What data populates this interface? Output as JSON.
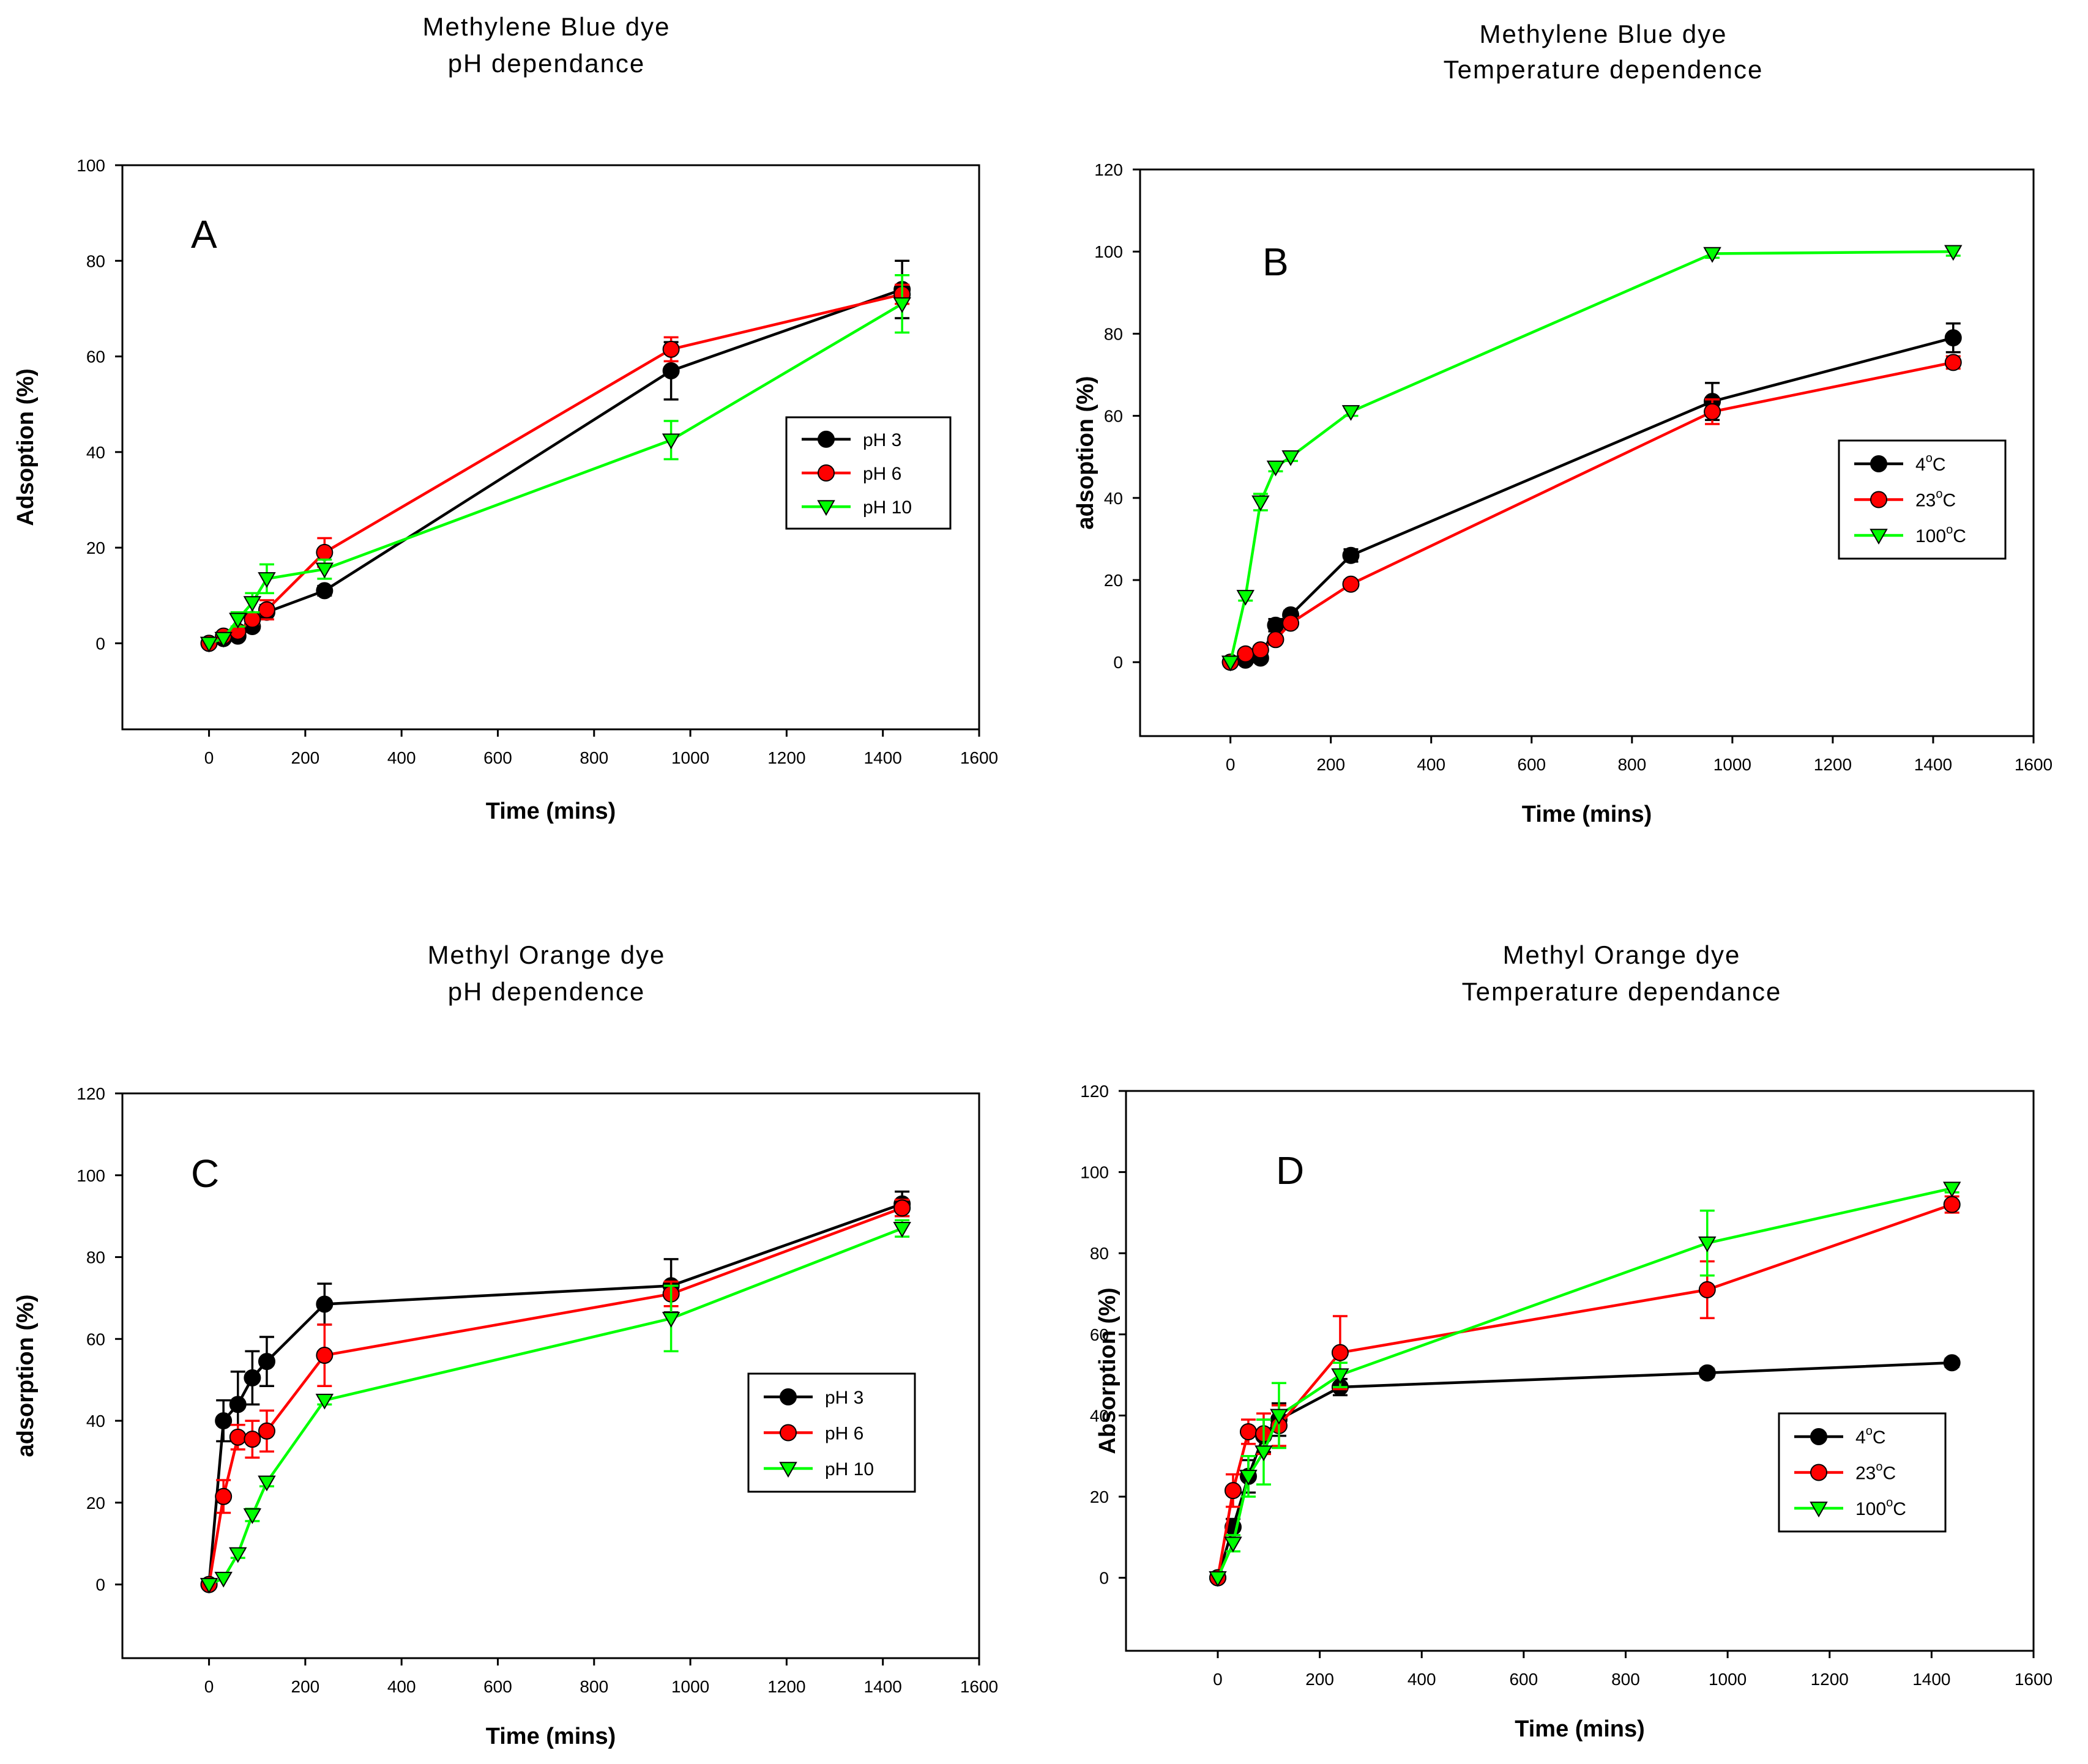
{
  "chart_data": [
    {
      "type": "line",
      "panel": "A",
      "title": [
        "Methylene Blue dye",
        "pH dependance"
      ],
      "xlabel": "Time (mins)",
      "ylabel": "Adsoption (%)",
      "xlim": [
        -180,
        1600
      ],
      "ylim": [
        -18,
        100
      ],
      "xticks": [
        0,
        200,
        400,
        600,
        800,
        1000,
        1200,
        1400,
        1600
      ],
      "yticks": [
        0,
        20,
        40,
        60,
        80,
        100
      ],
      "legend_position": "center-right",
      "series": [
        {
          "name": "pH 3",
          "color": "#000000",
          "marker": "circle",
          "x": [
            0,
            30,
            60,
            90,
            120,
            240,
            960,
            1440
          ],
          "y": [
            0,
            1,
            1.5,
            3.5,
            6.5,
            11,
            57,
            74
          ],
          "err": [
            0.5,
            0.5,
            0.5,
            0.8,
            1.5,
            1,
            6,
            6
          ]
        },
        {
          "name": "pH 6",
          "color": "#ff0000",
          "marker": "circle",
          "x": [
            0,
            30,
            60,
            90,
            120,
            240,
            960,
            1440
          ],
          "y": [
            0,
            1.5,
            2.5,
            5,
            7,
            19,
            61.5,
            73
          ],
          "err": [
            0.5,
            0.5,
            0.8,
            1,
            2,
            3,
            2.5,
            2
          ]
        },
        {
          "name": "pH 10",
          "color": "#00ff00",
          "marker": "triangle-down",
          "x": [
            0,
            30,
            60,
            90,
            120,
            240,
            960,
            1440
          ],
          "y": [
            0,
            1,
            5,
            8.5,
            13.5,
            15.5,
            42.5,
            71
          ],
          "err": [
            0.5,
            0.5,
            1.5,
            2,
            3,
            2,
            4,
            6
          ]
        }
      ]
    },
    {
      "type": "line",
      "panel": "B",
      "title": [
        "Methylene Blue dye",
        "Temperature dependence"
      ],
      "xlabel": "Time (mins)",
      "ylabel": "adsoption (%)",
      "xlim": [
        -180,
        1600
      ],
      "ylim": [
        -18,
        120
      ],
      "xticks": [
        0,
        200,
        400,
        600,
        800,
        1000,
        1200,
        1400,
        1600
      ],
      "yticks": [
        0,
        20,
        40,
        60,
        80,
        100,
        120
      ],
      "legend_position": "center-right",
      "series": [
        {
          "name": "4",
          "name_sup": "o",
          "name_suffix": "C",
          "color": "#000000",
          "marker": "circle",
          "x": [
            0,
            30,
            60,
            90,
            120,
            240,
            960,
            1440
          ],
          "y": [
            0,
            0.5,
            1,
            9,
            11.5,
            26,
            63.5,
            79
          ],
          "err": [
            0.5,
            0.5,
            0.5,
            1.5,
            1,
            1.5,
            4.5,
            3.5
          ]
        },
        {
          "name": "23",
          "name_sup": "o",
          "name_suffix": "C",
          "color": "#ff0000",
          "marker": "circle",
          "x": [
            0,
            30,
            60,
            90,
            120,
            240,
            960,
            1440
          ],
          "y": [
            0,
            2,
            3,
            5.5,
            9.5,
            19,
            61,
            73
          ],
          "err": [
            0.5,
            0.5,
            0.5,
            0.8,
            1,
            1,
            3,
            1.5
          ]
        },
        {
          "name": "100",
          "name_sup": "o",
          "name_suffix": "C",
          "color": "#00ff00",
          "marker": "triangle-down",
          "x": [
            0,
            30,
            60,
            90,
            120,
            240,
            960,
            1440
          ],
          "y": [
            0,
            16,
            39,
            47.5,
            50,
            61,
            99.5,
            100
          ],
          "err": [
            0.5,
            1,
            2,
            1,
            1,
            1,
            1,
            1
          ]
        }
      ]
    },
    {
      "type": "line",
      "panel": "C",
      "title": [
        "Methyl Orange dye",
        "pH dependence"
      ],
      "xlabel": "Time (mins)",
      "ylabel": "adsorption (%)",
      "xlim": [
        -180,
        1600
      ],
      "ylim": [
        -18,
        120
      ],
      "xticks": [
        0,
        200,
        400,
        600,
        800,
        1000,
        1200,
        1400,
        1600
      ],
      "yticks": [
        0,
        20,
        40,
        60,
        80,
        100,
        120
      ],
      "legend_position": "center-right",
      "series": [
        {
          "name": "pH 3",
          "color": "#000000",
          "marker": "circle",
          "x": [
            0,
            30,
            60,
            90,
            120,
            240,
            960,
            1440
          ],
          "y": [
            0,
            40,
            44,
            50.5,
            54.5,
            68.5,
            73,
            93
          ],
          "err": [
            0.5,
            5,
            8,
            6.5,
            6,
            5,
            6.5,
            3
          ]
        },
        {
          "name": "pH 6",
          "color": "#ff0000",
          "marker": "circle",
          "x": [
            0,
            30,
            60,
            90,
            120,
            240,
            960,
            1440
          ],
          "y": [
            0,
            21.5,
            36,
            35.5,
            37.5,
            56,
            71,
            92
          ],
          "err": [
            0.5,
            4,
            3,
            4.5,
            5,
            7.5,
            3,
            2
          ]
        },
        {
          "name": "pH 10",
          "color": "#00ff00",
          "marker": "triangle-down",
          "x": [
            0,
            30,
            60,
            90,
            120,
            240,
            960,
            1440
          ],
          "y": [
            0,
            1.5,
            7.5,
            17,
            25,
            45,
            65,
            87
          ],
          "err": [
            0.5,
            0.5,
            1,
            1.5,
            1,
            1,
            8,
            2
          ]
        }
      ]
    },
    {
      "type": "line",
      "panel": "D",
      "title": [
        "Methyl Orange dye",
        "Temperature dependance"
      ],
      "xlabel": "Time (mins)",
      "ylabel": "Absorption (%)",
      "xlim": [
        -180,
        1600
      ],
      "ylim": [
        -18,
        120
      ],
      "xticks": [
        0,
        200,
        400,
        600,
        800,
        1000,
        1200,
        1400,
        1600
      ],
      "yticks": [
        0,
        20,
        40,
        60,
        80,
        100,
        120
      ],
      "legend_position": "lower-right",
      "series": [
        {
          "name": "4",
          "name_sup": "o",
          "name_suffix": "C",
          "color": "#000000",
          "marker": "circle",
          "x": [
            0,
            30,
            60,
            90,
            120,
            240,
            960,
            1440
          ],
          "y": [
            0,
            12.5,
            25,
            35,
            39,
            47,
            50.5,
            53
          ],
          "err": [
            0.5,
            2,
            4,
            4,
            4,
            2,
            1,
            1
          ]
        },
        {
          "name": "23",
          "name_sup": "o",
          "name_suffix": "C",
          "color": "#ff0000",
          "marker": "circle",
          "x": [
            0,
            30,
            60,
            90,
            120,
            240,
            960,
            1440
          ],
          "y": [
            0,
            21.5,
            36,
            35.5,
            37.5,
            55.5,
            71,
            92
          ],
          "err": [
            0.5,
            4,
            3,
            5,
            5,
            9,
            7,
            2
          ]
        },
        {
          "name": "100",
          "name_sup": "o",
          "name_suffix": "C",
          "color": "#00ff00",
          "marker": "triangle-down",
          "x": [
            0,
            30,
            60,
            90,
            120,
            240,
            960,
            1440
          ],
          "y": [
            0,
            8.5,
            25,
            31,
            40,
            50,
            82.5,
            96
          ],
          "err": [
            0.5,
            2,
            5,
            8,
            8,
            3,
            8,
            1
          ]
        }
      ]
    }
  ]
}
